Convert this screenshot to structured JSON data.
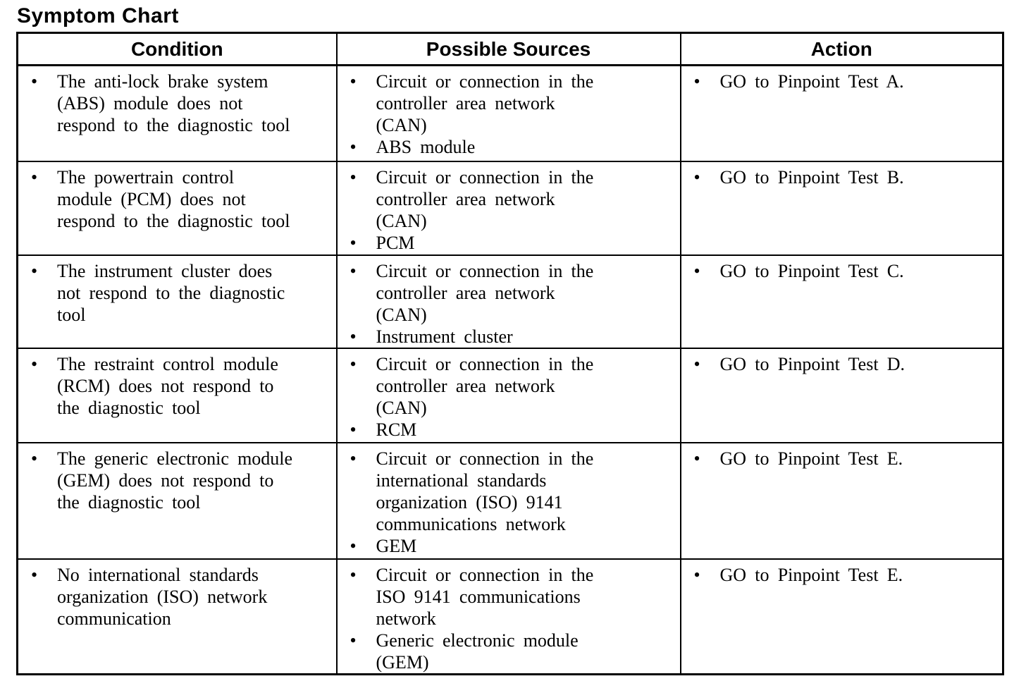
{
  "title": "Symptom Chart",
  "table": {
    "headers": [
      "Condition",
      "Possible Sources",
      "Action"
    ],
    "rows": [
      {
        "condition": [
          "The anti-lock brake system\n(ABS) module does not\nrespond to the diagnostic tool"
        ],
        "sources": [
          "Circuit or connection in the\ncontroller area network\n(CAN)",
          "ABS module"
        ],
        "action": [
          "GO to Pinpoint Test A."
        ]
      },
      {
        "condition": [
          "The powertrain control\nmodule (PCM) does not\nrespond to the diagnostic tool"
        ],
        "sources": [
          "Circuit or connection in the\ncontroller area network\n(CAN)",
          "PCM"
        ],
        "action": [
          "GO to Pinpoint Test B."
        ]
      },
      {
        "condition": [
          "The instrument cluster does\nnot respond to the diagnostic\ntool"
        ],
        "sources": [
          "Circuit or connection in the\ncontroller area network\n(CAN)",
          "Instrument cluster"
        ],
        "action": [
          "GO to Pinpoint Test C."
        ]
      },
      {
        "condition": [
          "The restraint control module\n(RCM) does not respond to\nthe diagnostic tool"
        ],
        "sources": [
          "Circuit or connection in the\ncontroller area network\n(CAN)",
          "RCM"
        ],
        "action": [
          "GO to Pinpoint Test D."
        ]
      },
      {
        "condition": [
          "The generic electronic module\n(GEM) does not respond to\nthe diagnostic tool"
        ],
        "sources": [
          "Circuit or connection in the\ninternational standards\norganization (ISO) 9141\ncommunications network",
          "GEM"
        ],
        "action": [
          "GO to Pinpoint Test E."
        ]
      },
      {
        "condition": [
          "No international standards\norganization (ISO) network\ncommunication"
        ],
        "sources": [
          "Circuit or connection in the\nISO 9141 communications\nnetwork",
          "Generic electronic module\n(GEM)"
        ],
        "action": [
          "GO to Pinpoint Test E."
        ]
      }
    ]
  },
  "colors": {
    "text": "#000000",
    "background": "#ffffff",
    "border": "#000000"
  }
}
